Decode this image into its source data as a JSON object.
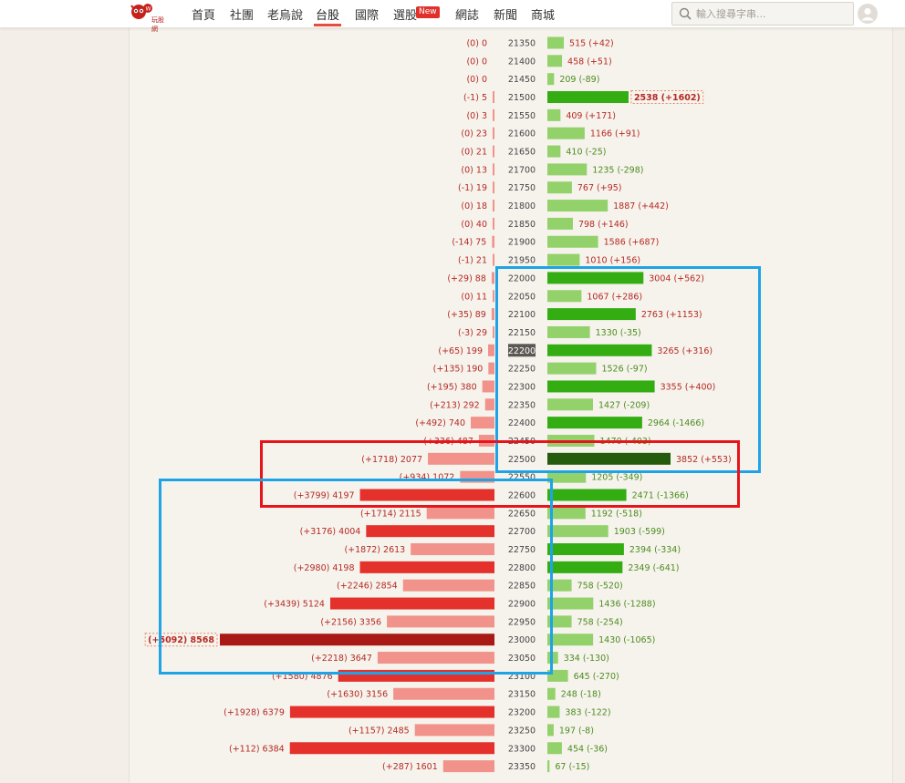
{
  "nav": {
    "logo_text": "玩股網",
    "items": [
      {
        "label": "首頁",
        "key": "home"
      },
      {
        "label": "社團",
        "key": "club"
      },
      {
        "label": "老烏說",
        "key": "laowu"
      },
      {
        "label": "台股",
        "key": "twstock"
      },
      {
        "label": "國際",
        "key": "intl"
      },
      {
        "label": "選股",
        "key": "screener"
      },
      {
        "label": "網誌",
        "key": "blog"
      },
      {
        "label": "新聞",
        "key": "news"
      },
      {
        "label": "商城",
        "key": "mall"
      }
    ],
    "active": "台股",
    "new_badge": "New"
  },
  "search": {
    "placeholder": "輸入搜尋字串..."
  },
  "colors": {
    "put_light": "#f1938b",
    "put_dark": "#e4312b",
    "put_max": "#a91a16",
    "call_light": "#93d16b",
    "call_dark": "#33ad12",
    "call_max": "#245b0c",
    "put_text": "#b52a22",
    "call_text": "#4c8c1e",
    "strike_highlight": "#5b5854",
    "annotation_red": "#e8141c",
    "annotation_blue": "#1ea4e6"
  },
  "chart_data": {
    "type": "bar",
    "highlight_strike": 22200,
    "top_put": {
      "strike": 23000,
      "change_label": "+5092"
    },
    "top_call": {
      "strike": 21500,
      "change_label": "+1602"
    },
    "rows": [
      {
        "strike": 21350,
        "put_oi": 0,
        "put_change": "0",
        "call_oi": 515,
        "call_change": "+42"
      },
      {
        "strike": 21400,
        "put_oi": 0,
        "put_change": "0",
        "call_oi": 458,
        "call_change": "+51"
      },
      {
        "strike": 21450,
        "put_oi": 0,
        "put_change": "0",
        "call_oi": 209,
        "call_change": "-89"
      },
      {
        "strike": 21500,
        "put_oi": 5,
        "put_change": "-1",
        "call_oi": 2538,
        "call_change": "+1602"
      },
      {
        "strike": 21550,
        "put_oi": 3,
        "put_change": "0",
        "call_oi": 409,
        "call_change": "+171"
      },
      {
        "strike": 21600,
        "put_oi": 23,
        "put_change": "0",
        "call_oi": 1166,
        "call_change": "+91"
      },
      {
        "strike": 21650,
        "put_oi": 21,
        "put_change": "0",
        "call_oi": 410,
        "call_change": "-25"
      },
      {
        "strike": 21700,
        "put_oi": 13,
        "put_change": "0",
        "call_oi": 1235,
        "call_change": "-298"
      },
      {
        "strike": 21750,
        "put_oi": 19,
        "put_change": "-1",
        "call_oi": 767,
        "call_change": "+95"
      },
      {
        "strike": 21800,
        "put_oi": 18,
        "put_change": "0",
        "call_oi": 1887,
        "call_change": "+442"
      },
      {
        "strike": 21850,
        "put_oi": 40,
        "put_change": "0",
        "call_oi": 798,
        "call_change": "+146"
      },
      {
        "strike": 21900,
        "put_oi": 75,
        "put_change": "-14",
        "call_oi": 1586,
        "call_change": "+687"
      },
      {
        "strike": 21950,
        "put_oi": 21,
        "put_change": "-1",
        "call_oi": 1010,
        "call_change": "+156"
      },
      {
        "strike": 22000,
        "put_oi": 88,
        "put_change": "+29",
        "call_oi": 3004,
        "call_change": "+562"
      },
      {
        "strike": 22050,
        "put_oi": 11,
        "put_change": "0",
        "call_oi": 1067,
        "call_change": "+286"
      },
      {
        "strike": 22100,
        "put_oi": 89,
        "put_change": "+35",
        "call_oi": 2763,
        "call_change": "+1153"
      },
      {
        "strike": 22150,
        "put_oi": 29,
        "put_change": "-3",
        "call_oi": 1330,
        "call_change": "-35"
      },
      {
        "strike": 22200,
        "put_oi": 199,
        "put_change": "+65",
        "call_oi": 3265,
        "call_change": "+316"
      },
      {
        "strike": 22250,
        "put_oi": 190,
        "put_change": "+135",
        "call_oi": 1526,
        "call_change": "-97"
      },
      {
        "strike": 22300,
        "put_oi": 380,
        "put_change": "+195",
        "call_oi": 3355,
        "call_change": "+400"
      },
      {
        "strike": 22350,
        "put_oi": 292,
        "put_change": "+213",
        "call_oi": 1427,
        "call_change": "-209"
      },
      {
        "strike": 22400,
        "put_oi": 740,
        "put_change": "+492",
        "call_oi": 2964,
        "call_change": "-1466"
      },
      {
        "strike": 22450,
        "put_oi": 487,
        "put_change": "+336",
        "call_oi": 1470,
        "call_change": "-403"
      },
      {
        "strike": 22500,
        "put_oi": 2077,
        "put_change": "+1718",
        "call_oi": 3852,
        "call_change": "+553"
      },
      {
        "strike": 22550,
        "put_oi": 1072,
        "put_change": "+934",
        "call_oi": 1205,
        "call_change": "-349"
      },
      {
        "strike": 22600,
        "put_oi": 4197,
        "put_change": "+3799",
        "call_oi": 2471,
        "call_change": "-1366"
      },
      {
        "strike": 22650,
        "put_oi": 2115,
        "put_change": "+1714",
        "call_oi": 1192,
        "call_change": "-518"
      },
      {
        "strike": 22700,
        "put_oi": 4004,
        "put_change": "+3176",
        "call_oi": 1903,
        "call_change": "-599"
      },
      {
        "strike": 22750,
        "put_oi": 2613,
        "put_change": "+1872",
        "call_oi": 2394,
        "call_change": "-334"
      },
      {
        "strike": 22800,
        "put_oi": 4198,
        "put_change": "+2980",
        "call_oi": 2349,
        "call_change": "-641"
      },
      {
        "strike": 22850,
        "put_oi": 2854,
        "put_change": "+2246",
        "call_oi": 758,
        "call_change": "-520"
      },
      {
        "strike": 22900,
        "put_oi": 5124,
        "put_change": "+3439",
        "call_oi": 1436,
        "call_change": "-1288"
      },
      {
        "strike": 22950,
        "put_oi": 3356,
        "put_change": "+2156",
        "call_oi": 758,
        "call_change": "-254"
      },
      {
        "strike": 23000,
        "put_oi": 8568,
        "put_change": "+5092",
        "call_oi": 1430,
        "call_change": "-1065"
      },
      {
        "strike": 23050,
        "put_oi": 3647,
        "put_change": "+2218",
        "call_oi": 334,
        "call_change": "-130"
      },
      {
        "strike": 23100,
        "put_oi": 4876,
        "put_change": "+1580",
        "call_oi": 645,
        "call_change": "-270"
      },
      {
        "strike": 23150,
        "put_oi": 3156,
        "put_change": "+1630",
        "call_oi": 248,
        "call_change": "-18"
      },
      {
        "strike": 23200,
        "put_oi": 6379,
        "put_change": "+1928",
        "call_oi": 383,
        "call_change": "-122"
      },
      {
        "strike": 23250,
        "put_oi": 2485,
        "put_change": "+1157",
        "call_oi": 197,
        "call_change": "-8"
      },
      {
        "strike": 23300,
        "put_oi": 6384,
        "put_change": "+112",
        "call_oi": 454,
        "call_change": "-36"
      },
      {
        "strike": 23350,
        "put_oi": 1601,
        "put_change": "+287",
        "call_oi": 67,
        "call_change": "-15"
      }
    ]
  }
}
